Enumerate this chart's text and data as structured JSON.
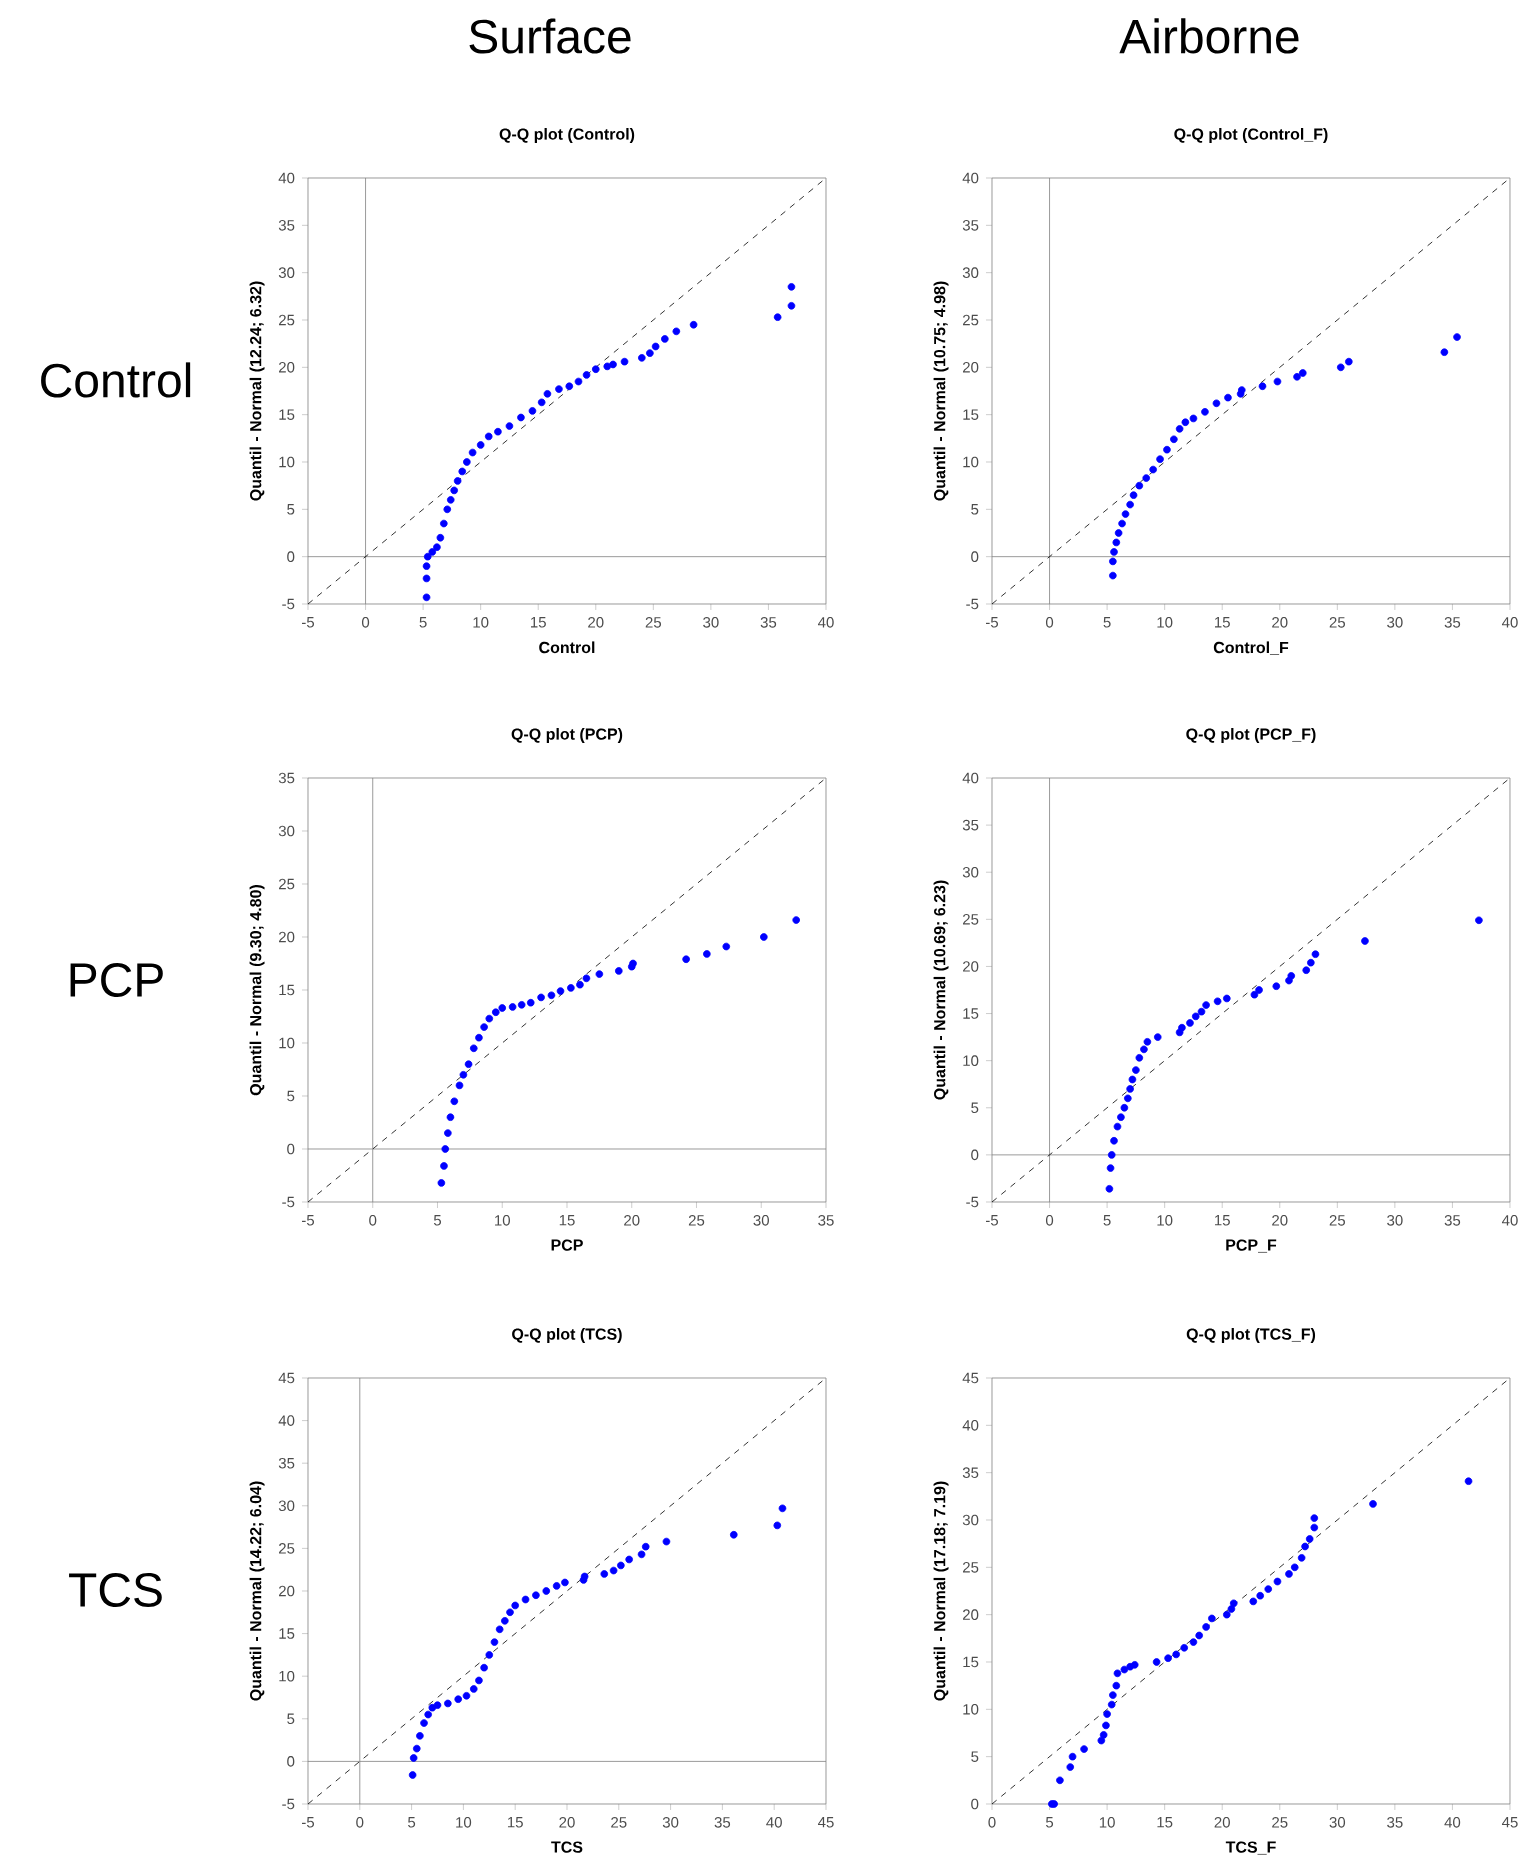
{
  "chart_data": [
    {
      "type": "other",
      "annotations": [
        "Surface",
        "Airborne",
        "Control",
        "PCP",
        "TCS"
      ]
    },
    {
      "type": "scatter",
      "title": "Q-Q plot (Control)",
      "xlabel": "Control",
      "ylabel": "Quantil - Normal (12.24; 6.32)",
      "xlim": [
        -5,
        40
      ],
      "ylim": [
        -5,
        40
      ],
      "xticks": [
        -5,
        0,
        5,
        10,
        15,
        20,
        25,
        30,
        35,
        40
      ],
      "yticks": [
        -5,
        0,
        5,
        10,
        15,
        20,
        25,
        30,
        35,
        40
      ],
      "series": [
        {
          "type": "scatter",
          "marker": "circle",
          "color": "#0000ff",
          "x": [
            5.3,
            5.3,
            5.3,
            5.4,
            5.8,
            6.2,
            6.5,
            6.8,
            7.1,
            7.4,
            7.7,
            8,
            8.4,
            8.8,
            9.3,
            10,
            10.7,
            11.5,
            12.5,
            13.5,
            14.5,
            15.3,
            15.8,
            16.8,
            17.7,
            18.5,
            19.2,
            20,
            21,
            21.5,
            22.5,
            24,
            24.7,
            25.2,
            26,
            27,
            28.5,
            35.8,
            37,
            37
          ],
          "values": [
            -4.3,
            -2.3,
            -1,
            0,
            0.5,
            1,
            2,
            3.5,
            5,
            6,
            7,
            8,
            9,
            10,
            11,
            11.8,
            12.7,
            13.2,
            13.8,
            14.7,
            15.4,
            16.3,
            17.2,
            17.7,
            18,
            18.5,
            19.2,
            19.8,
            20.1,
            20.3,
            20.6,
            21,
            21.5,
            22.2,
            23,
            23.8,
            24.5,
            25.3,
            26.5,
            28.5
          ]
        },
        {
          "type": "line",
          "line_style": "dashed",
          "color": "#000000",
          "x": [
            -5,
            40
          ],
          "values": [
            -5,
            40
          ]
        }
      ]
    },
    {
      "type": "scatter",
      "title": "Q-Q plot (Control_F)",
      "xlabel": "Control_F",
      "ylabel": "Quantil - Normal (10.75; 4.98)",
      "xlim": [
        -5,
        40
      ],
      "ylim": [
        -5,
        40
      ],
      "xticks": [
        -5,
        0,
        5,
        10,
        15,
        20,
        25,
        30,
        35,
        40
      ],
      "yticks": [
        -5,
        0,
        5,
        10,
        15,
        20,
        25,
        30,
        35,
        40
      ],
      "series": [
        {
          "type": "scatter",
          "marker": "circle",
          "color": "#0000ff",
          "x": [
            5.5,
            5.5,
            5.6,
            5.8,
            6,
            6.3,
            6.6,
            7,
            7.3,
            7.8,
            8.4,
            9,
            9.6,
            10.2,
            10.8,
            11.3,
            11.8,
            12.5,
            13.5,
            14.5,
            15.5,
            16.6,
            16.7,
            18.5,
            19.8,
            21.5,
            22,
            25.3,
            26,
            34.3,
            35.4
          ],
          "values": [
            -2,
            -0.5,
            0.5,
            1.5,
            2.5,
            3.5,
            4.5,
            5.5,
            6.5,
            7.5,
            8.3,
            9.2,
            10.3,
            11.3,
            12.4,
            13.5,
            14.2,
            14.6,
            15.3,
            16.2,
            16.8,
            17.2,
            17.6,
            18,
            18.5,
            19,
            19.4,
            20,
            20.6,
            21.6,
            23.2
          ]
        },
        {
          "type": "line",
          "line_style": "dashed",
          "color": "#000000",
          "x": [
            -5,
            40
          ],
          "values": [
            -5,
            40
          ]
        }
      ]
    },
    {
      "type": "scatter",
      "title": "Q-Q plot (PCP)",
      "xlabel": "PCP",
      "ylabel": "Quantil - Normal (9.30; 4.80)",
      "xlim": [
        -5,
        35
      ],
      "ylim": [
        -5,
        35
      ],
      "xticks": [
        -5,
        0,
        5,
        10,
        15,
        20,
        25,
        30,
        35
      ],
      "yticks": [
        -5,
        0,
        5,
        10,
        15,
        20,
        25,
        30,
        35
      ],
      "series": [
        {
          "type": "scatter",
          "marker": "circle",
          "color": "#0000ff",
          "x": [
            5.3,
            5.5,
            5.6,
            5.8,
            6,
            6.3,
            6.7,
            7,
            7.4,
            7.8,
            8.2,
            8.6,
            9,
            9.5,
            10,
            10.8,
            11.5,
            12.2,
            13,
            13.8,
            14.5,
            15.3,
            16,
            16.5,
            17.5,
            19,
            20,
            20.1,
            24.2,
            25.8,
            27.3,
            30.2,
            32.7
          ],
          "values": [
            -3.2,
            -1.6,
            0,
            1.5,
            3,
            4.5,
            6,
            7,
            8,
            9.5,
            10.5,
            11.5,
            12.3,
            12.9,
            13.3,
            13.4,
            13.6,
            13.8,
            14.3,
            14.5,
            14.9,
            15.2,
            15.5,
            16.1,
            16.5,
            16.8,
            17.2,
            17.5,
            17.9,
            18.4,
            19.1,
            20,
            21.6
          ]
        },
        {
          "type": "line",
          "line_style": "dashed",
          "color": "#000000",
          "x": [
            -5,
            35
          ],
          "values": [
            -5,
            35
          ]
        }
      ]
    },
    {
      "type": "scatter",
      "title": "Q-Q plot (PCP_F)",
      "xlabel": "PCP_F",
      "ylabel": "Quantil - Normal (10.69; 6.23)",
      "xlim": [
        -5,
        40
      ],
      "ylim": [
        -5,
        40
      ],
      "xticks": [
        -5,
        0,
        5,
        10,
        15,
        20,
        25,
        30,
        35,
        40
      ],
      "yticks": [
        -5,
        0,
        5,
        10,
        15,
        20,
        25,
        30,
        35,
        40
      ],
      "series": [
        {
          "type": "scatter",
          "marker": "circle",
          "color": "#0000ff",
          "x": [
            5.2,
            5.3,
            5.4,
            5.6,
            5.9,
            6.2,
            6.5,
            6.8,
            7,
            7.2,
            7.5,
            7.8,
            8.2,
            8.5,
            9.4,
            11.3,
            11.5,
            12.2,
            12.7,
            13.2,
            13.6,
            14.6,
            15.4,
            17.8,
            18.2,
            19.7,
            20.8,
            21,
            22.3,
            22.7,
            23.1,
            27.4,
            37.3
          ],
          "values": [
            -3.6,
            -1.4,
            0,
            1.5,
            3,
            4,
            5,
            6,
            7,
            8,
            9,
            10.3,
            11.2,
            12,
            12.5,
            13,
            13.5,
            14,
            14.7,
            15.2,
            15.9,
            16.3,
            16.6,
            17,
            17.5,
            17.9,
            18.5,
            19,
            19.6,
            20.4,
            21.3,
            22.7,
            24.9
          ]
        },
        {
          "type": "line",
          "line_style": "dashed",
          "color": "#000000",
          "x": [
            -5,
            40
          ],
          "values": [
            -5,
            40
          ]
        }
      ]
    },
    {
      "type": "scatter",
      "title": "Q-Q plot (TCS)",
      "xlabel": "TCS",
      "ylabel": "Quantil - Normal (14.22; 6.04)",
      "xlim": [
        -5,
        45
      ],
      "ylim": [
        -5,
        45
      ],
      "xticks": [
        -5,
        0,
        5,
        10,
        15,
        20,
        25,
        30,
        35,
        40,
        45
      ],
      "yticks": [
        -5,
        0,
        5,
        10,
        15,
        20,
        25,
        30,
        35,
        40,
        45
      ],
      "series": [
        {
          "type": "scatter",
          "marker": "circle",
          "color": "#0000ff",
          "x": [
            5.1,
            5.2,
            5.5,
            5.8,
            6.2,
            6.6,
            7,
            7.5,
            8.5,
            9.5,
            10.3,
            11,
            11.5,
            12,
            12.5,
            13,
            13.5,
            14,
            14.5,
            15,
            16,
            17,
            18,
            19,
            19.8,
            21.6,
            21.7,
            23.6,
            24.5,
            25.2,
            26,
            27.2,
            27.6,
            29.6,
            36.1,
            40.3,
            40.8
          ],
          "values": [
            -1.6,
            0.4,
            1.5,
            3,
            4.5,
            5.5,
            6.3,
            6.6,
            6.8,
            7.3,
            7.7,
            8.5,
            9.5,
            11,
            12.5,
            14,
            15.5,
            16.5,
            17.5,
            18.3,
            19,
            19.5,
            20,
            20.6,
            21,
            21.3,
            21.7,
            22,
            22.4,
            23,
            23.7,
            24.3,
            25.2,
            25.8,
            26.6,
            27.7,
            29.7
          ]
        },
        {
          "type": "line",
          "line_style": "dashed",
          "color": "#000000",
          "x": [
            -5,
            45
          ],
          "values": [
            -5,
            45
          ]
        }
      ]
    },
    {
      "type": "scatter",
      "title": "Q-Q plot (TCS_F)",
      "xlabel": "TCS_F",
      "ylabel": "Quantil - Normal (17.18; 7.19)",
      "xlim": [
        0,
        45
      ],
      "ylim": [
        0,
        45
      ],
      "xticks": [
        0,
        5,
        10,
        15,
        20,
        25,
        30,
        35,
        40,
        45
      ],
      "yticks": [
        0,
        5,
        10,
        15,
        20,
        25,
        30,
        35,
        40,
        45
      ],
      "series": [
        {
          "type": "scatter",
          "marker": "circle",
          "color": "#0000ff",
          "x": [
            5.2,
            5.4,
            5.9,
            6.8,
            7,
            8,
            9.5,
            9.7,
            9.9,
            10,
            10.4,
            10.5,
            10.8,
            10.9,
            11.5,
            12,
            12.4,
            14.3,
            15.3,
            16,
            16.7,
            17.5,
            18,
            18.6,
            19.1,
            20.4,
            20.8,
            21,
            22.7,
            23.3,
            24,
            24.8,
            25.8,
            26.3,
            26.9,
            27.2,
            27.6,
            28,
            28,
            33.1,
            41.4
          ],
          "values": [
            0,
            0,
            2.5,
            3.9,
            5,
            5.8,
            6.7,
            7.3,
            8.3,
            9.5,
            10.5,
            11.5,
            12.5,
            13.8,
            14.2,
            14.5,
            14.7,
            15,
            15.4,
            15.8,
            16.5,
            17.1,
            17.8,
            18.7,
            19.6,
            20,
            20.6,
            21.2,
            21.4,
            22,
            22.7,
            23.5,
            24.3,
            25,
            26,
            27.2,
            28,
            29.2,
            30.2,
            31.7,
            34.1
          ]
        },
        {
          "type": "line",
          "line_style": "dashed",
          "color": "#000000",
          "x": [
            0,
            45
          ],
          "values": [
            0,
            45
          ]
        }
      ]
    }
  ]
}
